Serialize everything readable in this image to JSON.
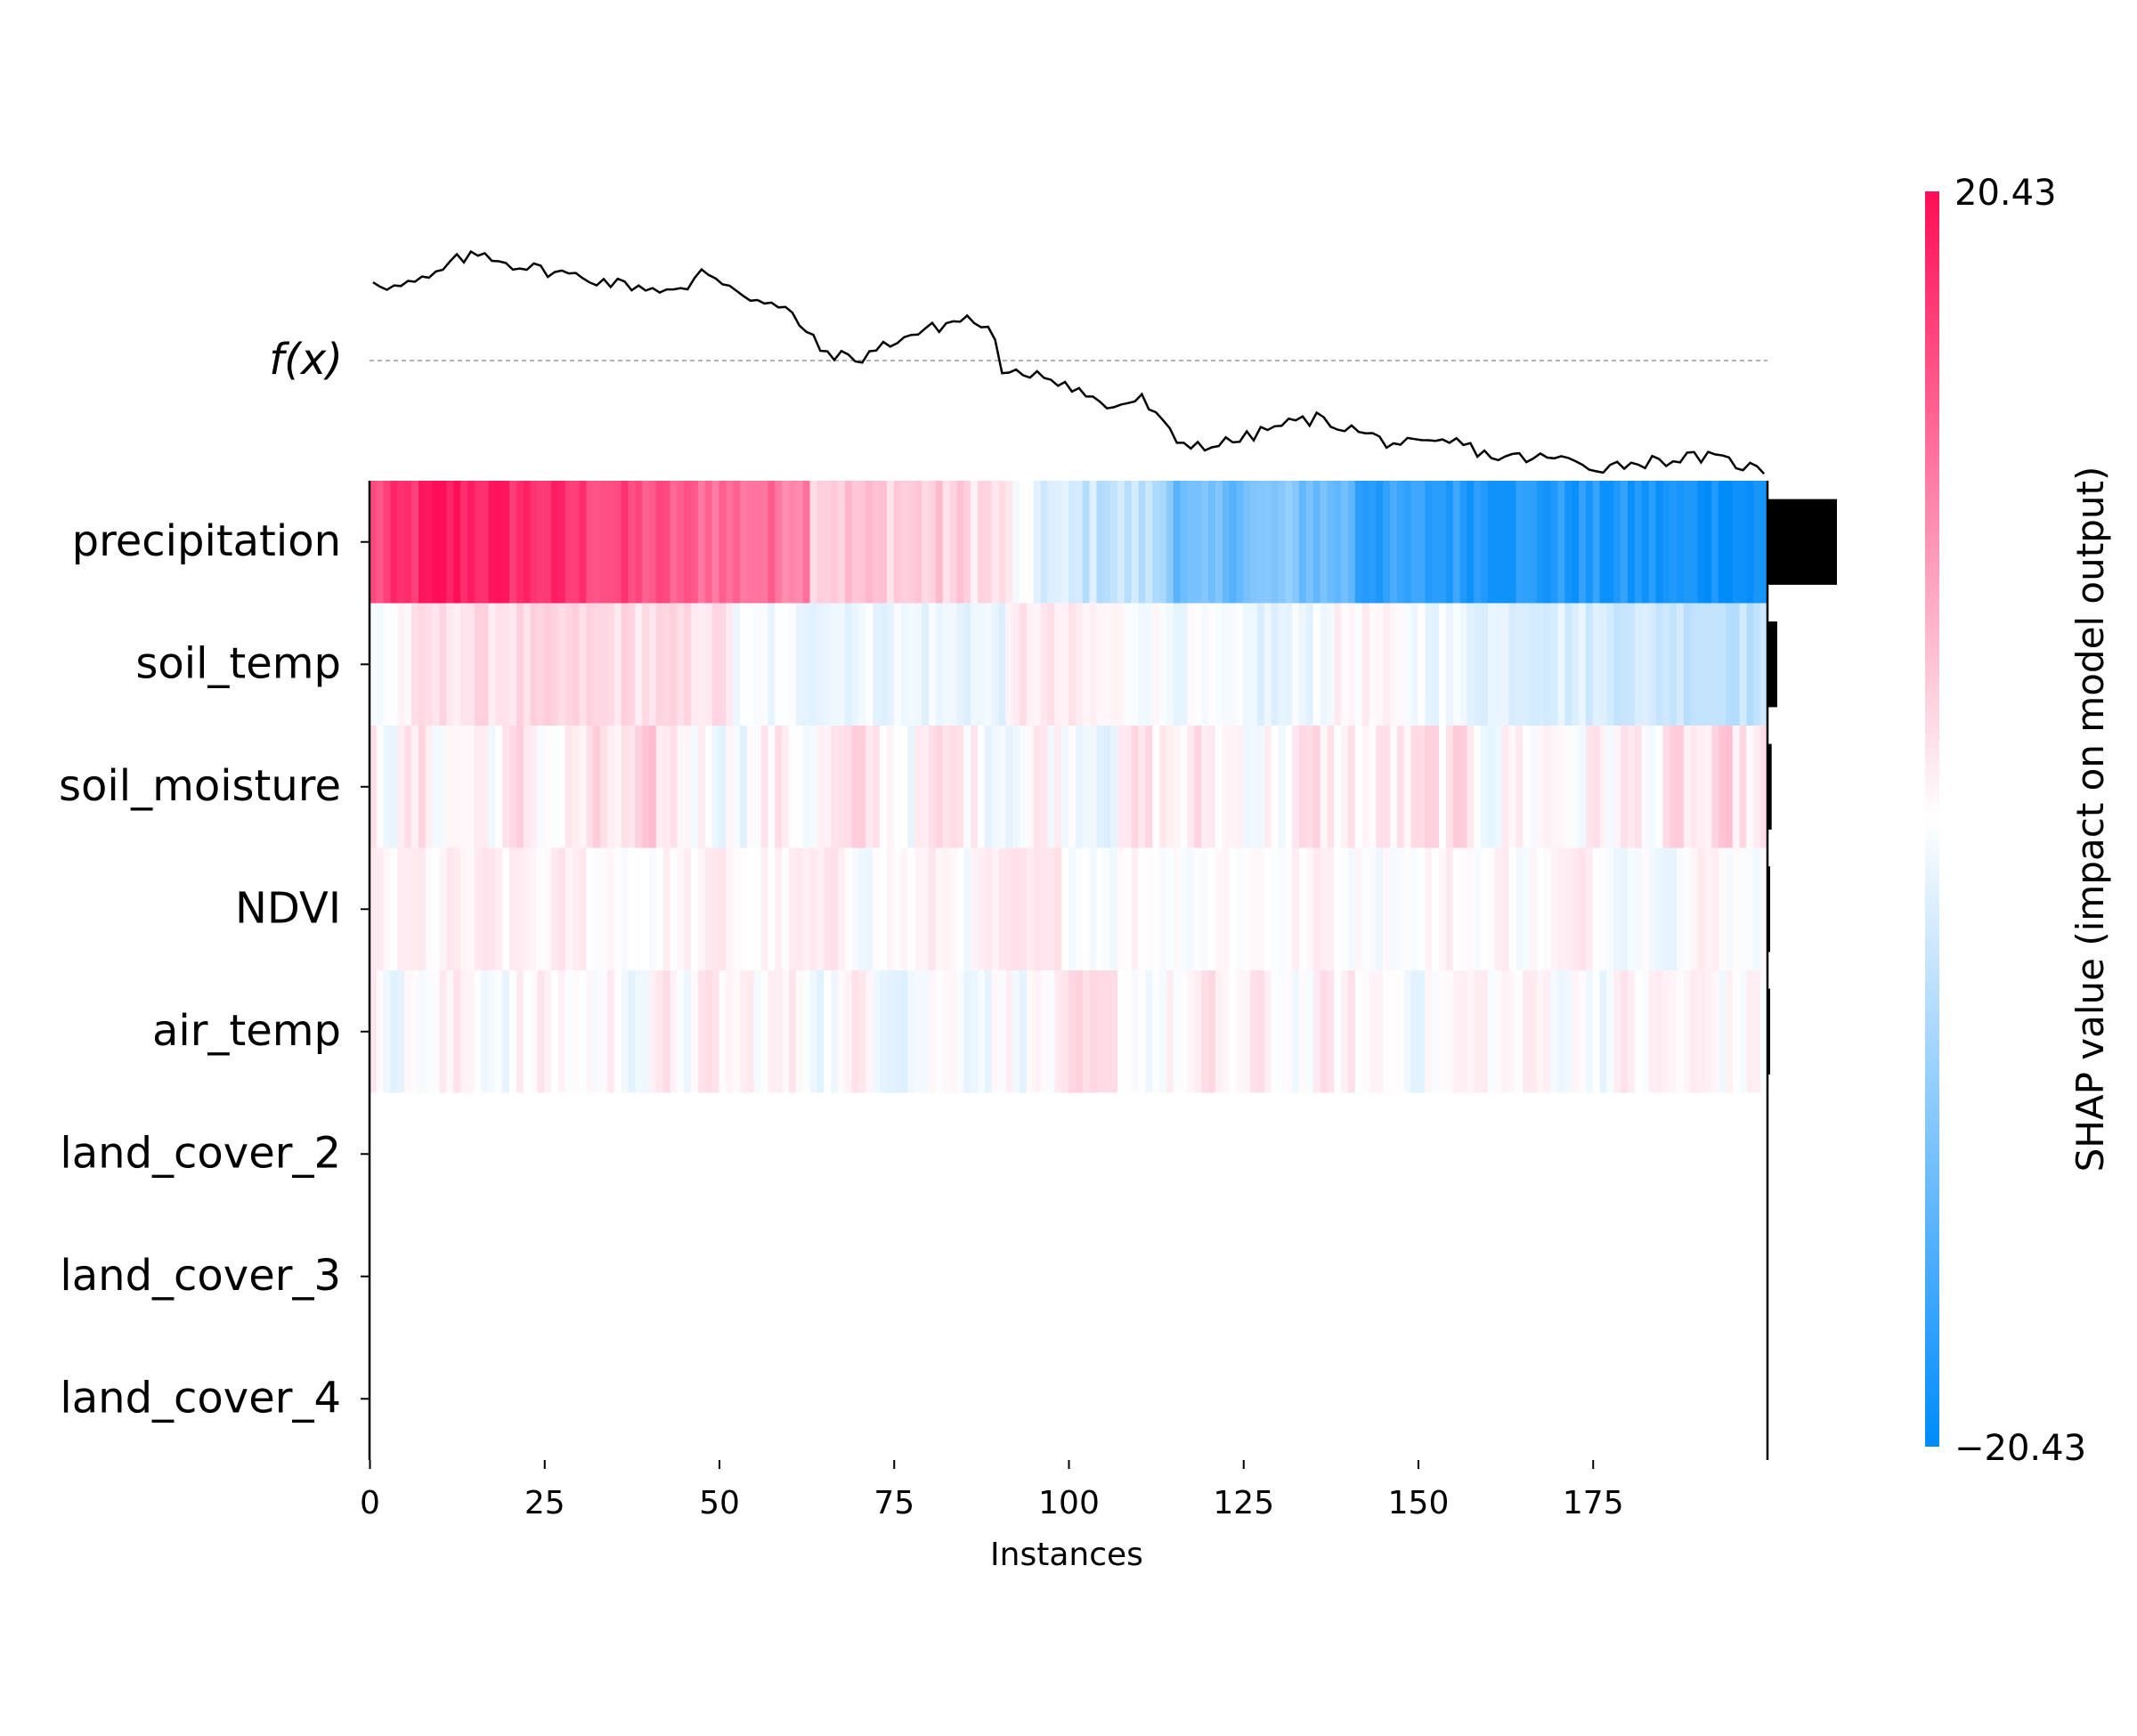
{
  "chart_data": {
    "type": "heatmap",
    "title": "",
    "xlabel": "Instances",
    "ylabel": "",
    "fx_label": "f(x)",
    "x_ticks": [
      0,
      25,
      50,
      75,
      100,
      125,
      150,
      175
    ],
    "x_range": [
      0,
      199
    ],
    "n_instances": 200,
    "features": [
      "precipitation",
      "soil_temp",
      "soil_moisture",
      "NDVI",
      "air_temp",
      "land_cover_2",
      "land_cover_3",
      "land_cover_4"
    ],
    "feature_importance": [
      10.0,
      1.4,
      0.6,
      0.3,
      0.3,
      0,
      0,
      0
    ],
    "colorbar": {
      "label": "SHAP value (impact on model output)",
      "max": 20.43,
      "min": -20.43,
      "max_label": "20.43",
      "min_label": "−20.43",
      "high_color": "#ff0d57",
      "low_color": "#008bfb"
    },
    "fx_anchor_points": [
      [
        0,
        0.88
      ],
      [
        3,
        0.84
      ],
      [
        8,
        0.88
      ],
      [
        12,
        0.97
      ],
      [
        16,
        1.0
      ],
      [
        20,
        0.95
      ],
      [
        25,
        0.92
      ],
      [
        35,
        0.86
      ],
      [
        45,
        0.82
      ],
      [
        47,
        0.93
      ],
      [
        55,
        0.78
      ],
      [
        60,
        0.72
      ],
      [
        64,
        0.55
      ],
      [
        69,
        0.5
      ],
      [
        75,
        0.6
      ],
      [
        85,
        0.7
      ],
      [
        89,
        0.62
      ],
      [
        90,
        0.42
      ],
      [
        95,
        0.45
      ],
      [
        100,
        0.38
      ],
      [
        105,
        0.28
      ],
      [
        110,
        0.32
      ],
      [
        115,
        0.12
      ],
      [
        120,
        0.1
      ],
      [
        125,
        0.14
      ],
      [
        130,
        0.2
      ],
      [
        135,
        0.23
      ],
      [
        140,
        0.18
      ],
      [
        145,
        0.12
      ],
      [
        150,
        0.1
      ],
      [
        155,
        0.12
      ],
      [
        160,
        0.05
      ],
      [
        170,
        0.04
      ],
      [
        175,
        0.0
      ],
      [
        180,
        0.02
      ],
      [
        190,
        0.05
      ],
      [
        195,
        0.02
      ],
      [
        199,
        -0.02
      ]
    ],
    "precip_profile": [
      [
        0,
        0.72
      ],
      [
        10,
        0.95
      ],
      [
        25,
        0.85
      ],
      [
        45,
        0.65
      ],
      [
        62,
        0.55
      ],
      [
        63,
        0.25
      ],
      [
        75,
        0.22
      ],
      [
        88,
        0.15
      ],
      [
        91,
        0.05
      ],
      [
        94,
        -0.1
      ],
      [
        100,
        -0.2
      ],
      [
        110,
        -0.25
      ],
      [
        114,
        -0.35
      ],
      [
        115,
        -0.62
      ],
      [
        130,
        -0.5
      ],
      [
        140,
        -0.6
      ],
      [
        141,
        -0.8
      ],
      [
        160,
        -0.85
      ],
      [
        199,
        -0.95
      ]
    ],
    "soiltemp_profile": [
      [
        0,
        -0.05
      ],
      [
        8,
        0.12
      ],
      [
        30,
        0.15
      ],
      [
        51,
        0.12
      ],
      [
        52,
        -0.05
      ],
      [
        90,
        -0.08
      ],
      [
        93,
        0.1
      ],
      [
        130,
        -0.12
      ],
      [
        140,
        0.05
      ],
      [
        155,
        -0.08
      ],
      [
        175,
        -0.15
      ],
      [
        199,
        -0.25
      ]
    ],
    "row_scale": [
      1,
      1,
      0.18,
      0.1,
      0.14
    ],
    "row_mean": [
      0,
      0,
      0.05,
      0.03,
      0.02
    ],
    "empty_rows_from": 5
  }
}
